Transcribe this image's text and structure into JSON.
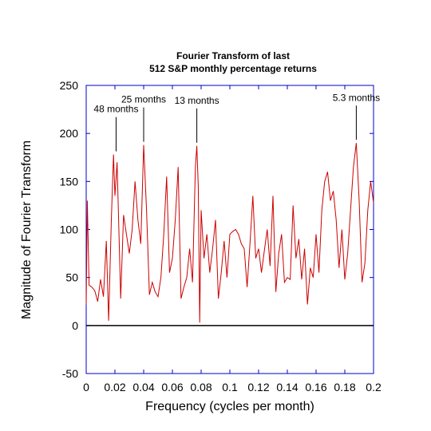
{
  "chart_data": {
    "type": "line",
    "title_line1": "Fourier Transform of last",
    "title_line2": "512 S&P monthly percentage returns",
    "xlabel": "Frequency (cycles per month)",
    "ylabel": "Magnitude of Fourier Transform",
    "xlim": [
      0,
      0.2
    ],
    "ylim": [
      -50,
      250
    ],
    "x_ticks": [
      "0",
      "0.02",
      "0.04",
      "0.06",
      "0.08",
      "0.1",
      "0.12",
      "0.14",
      "0.16",
      "0.18",
      "0.2"
    ],
    "y_ticks": [
      "-50",
      "0",
      "50",
      "100",
      "150",
      "200",
      "250"
    ],
    "grid": false,
    "line_color": "#cc0000",
    "axis_color": "#0000cc",
    "annotations": [
      {
        "text": "48 months",
        "x": 0.0208,
        "y": 178
      },
      {
        "text": "25 months",
        "x": 0.04,
        "y": 188
      },
      {
        "text": "13 months",
        "x": 0.077,
        "y": 187
      },
      {
        "text": "5.3 months",
        "x": 0.188,
        "y": 190
      }
    ],
    "series": [
      {
        "values": [
          [
            0.0,
            22
          ],
          [
            0.0008,
            130
          ],
          [
            0.002,
            42
          ],
          [
            0.004,
            40
          ],
          [
            0.006,
            36
          ],
          [
            0.008,
            25
          ],
          [
            0.01,
            48
          ],
          [
            0.012,
            30
          ],
          [
            0.014,
            88
          ],
          [
            0.0156,
            5
          ],
          [
            0.0175,
            110
          ],
          [
            0.019,
            178
          ],
          [
            0.02,
            135
          ],
          [
            0.0215,
            170
          ],
          [
            0.023,
            85
          ],
          [
            0.024,
            28
          ],
          [
            0.026,
            115
          ],
          [
            0.028,
            95
          ],
          [
            0.03,
            75
          ],
          [
            0.032,
            100
          ],
          [
            0.034,
            150
          ],
          [
            0.036,
            110
          ],
          [
            0.038,
            85
          ],
          [
            0.04,
            188
          ],
          [
            0.042,
            120
          ],
          [
            0.044,
            32
          ],
          [
            0.046,
            45
          ],
          [
            0.048,
            35
          ],
          [
            0.05,
            30
          ],
          [
            0.052,
            50
          ],
          [
            0.054,
            95
          ],
          [
            0.056,
            155
          ],
          [
            0.058,
            55
          ],
          [
            0.06,
            70
          ],
          [
            0.062,
            110
          ],
          [
            0.064,
            165
          ],
          [
            0.066,
            28
          ],
          [
            0.068,
            40
          ],
          [
            0.07,
            50
          ],
          [
            0.072,
            80
          ],
          [
            0.074,
            45
          ],
          [
            0.076,
            165
          ],
          [
            0.077,
            187
          ],
          [
            0.078,
            145
          ],
          [
            0.079,
            3
          ],
          [
            0.08,
            120
          ],
          [
            0.082,
            70
          ],
          [
            0.084,
            95
          ],
          [
            0.086,
            55
          ],
          [
            0.088,
            80
          ],
          [
            0.09,
            110
          ],
          [
            0.092,
            28
          ],
          [
            0.094,
            55
          ],
          [
            0.096,
            88
          ],
          [
            0.098,
            50
          ],
          [
            0.1,
            95
          ],
          [
            0.102,
            98
          ],
          [
            0.104,
            100
          ],
          [
            0.106,
            95
          ],
          [
            0.108,
            85
          ],
          [
            0.11,
            80
          ],
          [
            0.112,
            40
          ],
          [
            0.114,
            85
          ],
          [
            0.116,
            135
          ],
          [
            0.118,
            70
          ],
          [
            0.12,
            80
          ],
          [
            0.122,
            55
          ],
          [
            0.124,
            78
          ],
          [
            0.126,
            100
          ],
          [
            0.128,
            62
          ],
          [
            0.13,
            135
          ],
          [
            0.132,
            35
          ],
          [
            0.134,
            75
          ],
          [
            0.136,
            95
          ],
          [
            0.138,
            45
          ],
          [
            0.14,
            50
          ],
          [
            0.142,
            48
          ],
          [
            0.144,
            125
          ],
          [
            0.146,
            70
          ],
          [
            0.148,
            90
          ],
          [
            0.15,
            48
          ],
          [
            0.152,
            80
          ],
          [
            0.154,
            22
          ],
          [
            0.156,
            60
          ],
          [
            0.158,
            50
          ],
          [
            0.16,
            95
          ],
          [
            0.162,
            55
          ],
          [
            0.164,
            120
          ],
          [
            0.166,
            150
          ],
          [
            0.168,
            160
          ],
          [
            0.17,
            130
          ],
          [
            0.172,
            140
          ],
          [
            0.174,
            110
          ],
          [
            0.176,
            60
          ],
          [
            0.178,
            100
          ],
          [
            0.18,
            48
          ],
          [
            0.182,
            75
          ],
          [
            0.184,
            120
          ],
          [
            0.186,
            165
          ],
          [
            0.188,
            190
          ],
          [
            0.19,
            130
          ],
          [
            0.192,
            45
          ],
          [
            0.194,
            65
          ],
          [
            0.196,
            120
          ],
          [
            0.198,
            150
          ],
          [
            0.2,
            128
          ]
        ]
      }
    ]
  }
}
